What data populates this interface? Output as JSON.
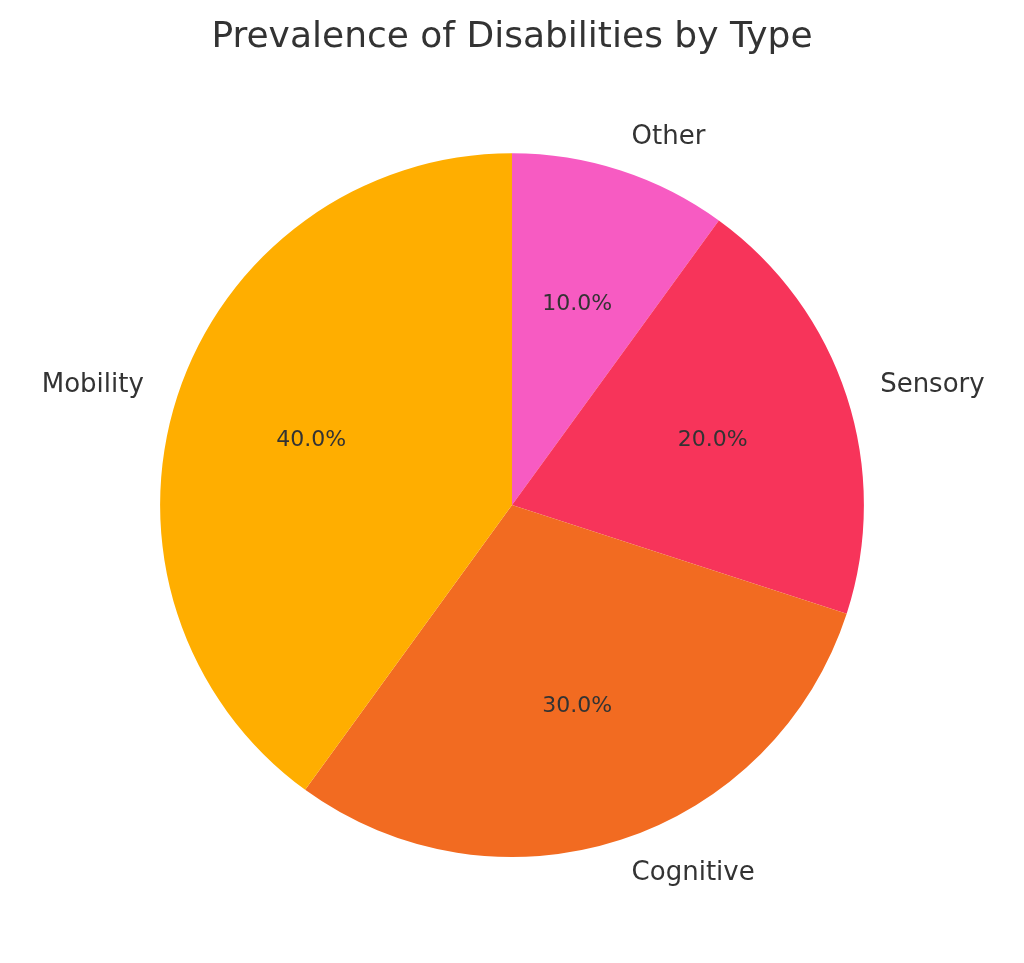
{
  "chart_data": {
    "type": "pie",
    "title": "Prevalence of Disabilities by Type",
    "categories": [
      "Other",
      "Sensory",
      "Cognitive",
      "Mobility"
    ],
    "values": [
      10,
      20,
      30,
      40
    ],
    "value_labels": [
      "10.0%",
      "20.0%",
      "30.0%",
      "40.0%"
    ],
    "colors": [
      "#f75bc2",
      "#f7345a",
      "#f26b21",
      "#ffae00"
    ],
    "data_labels": true
  }
}
